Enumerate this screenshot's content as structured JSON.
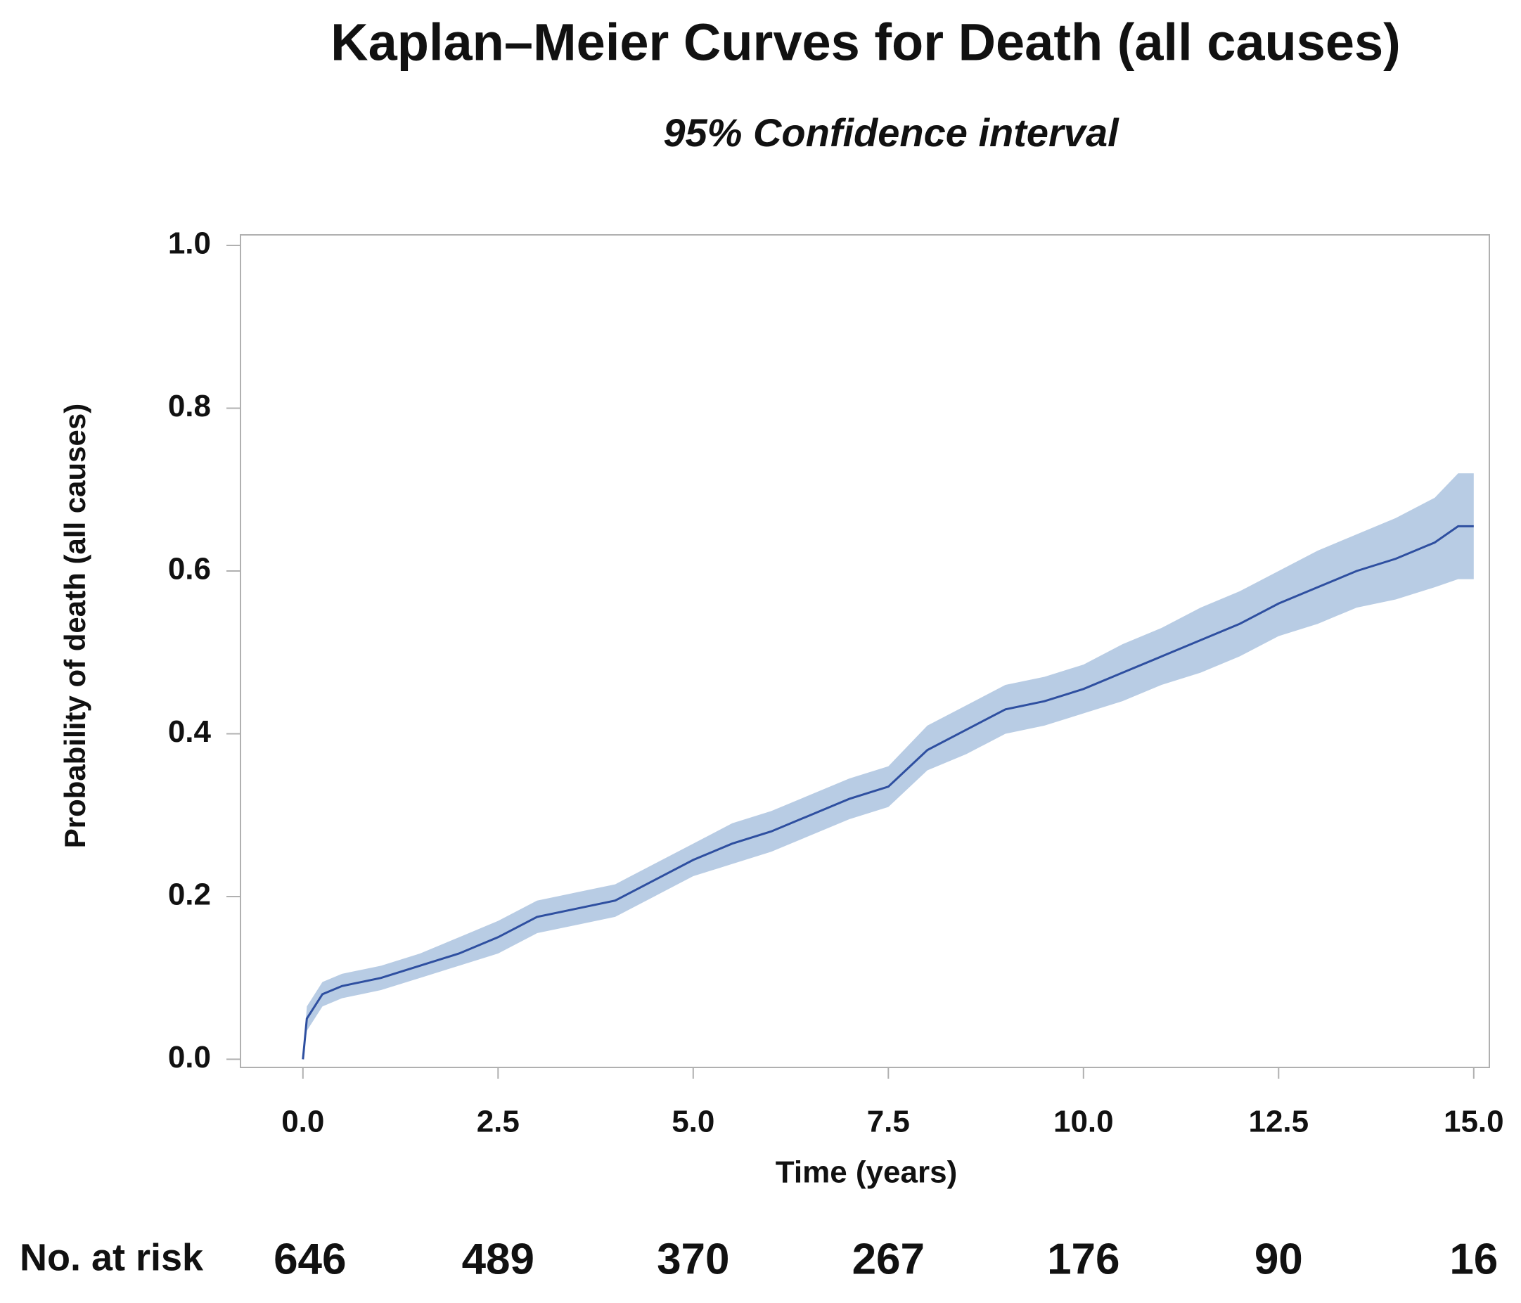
{
  "chart_data": {
    "type": "km",
    "title": "Kaplan–Meier Curves for Death (all causes)",
    "subtitle": "95% Confidence interval",
    "x_label": "Time (years)",
    "y_label": "Probability of death (all causes)",
    "x": [
      0,
      0.05,
      0.25,
      0.5,
      1,
      1.5,
      2,
      2.5,
      3,
      3.5,
      4,
      4.5,
      5,
      5.5,
      6,
      6.5,
      7,
      7.5,
      8,
      8.5,
      9,
      9.5,
      10,
      10.5,
      11,
      11.5,
      12,
      12.5,
      13,
      13.5,
      14,
      14.5,
      14.8,
      15
    ],
    "values": [
      0,
      0.05,
      0.08,
      0.09,
      0.1,
      0.115,
      0.13,
      0.15,
      0.175,
      0.185,
      0.195,
      0.22,
      0.245,
      0.265,
      0.28,
      0.3,
      0.32,
      0.335,
      0.38,
      0.405,
      0.43,
      0.44,
      0.455,
      0.475,
      0.495,
      0.515,
      0.535,
      0.56,
      0.58,
      0.6,
      0.615,
      0.635,
      0.655,
      0.655
    ],
    "ci_lower": [
      0,
      0.035,
      0.065,
      0.075,
      0.085,
      0.1,
      0.115,
      0.13,
      0.155,
      0.165,
      0.175,
      0.2,
      0.225,
      0.24,
      0.255,
      0.275,
      0.295,
      0.31,
      0.355,
      0.375,
      0.4,
      0.41,
      0.425,
      0.44,
      0.46,
      0.475,
      0.495,
      0.52,
      0.535,
      0.555,
      0.565,
      0.58,
      0.59,
      0.59
    ],
    "ci_upper": [
      0,
      0.065,
      0.095,
      0.105,
      0.115,
      0.13,
      0.15,
      0.17,
      0.195,
      0.205,
      0.215,
      0.24,
      0.265,
      0.29,
      0.305,
      0.325,
      0.345,
      0.36,
      0.41,
      0.435,
      0.46,
      0.47,
      0.485,
      0.51,
      0.53,
      0.555,
      0.575,
      0.6,
      0.625,
      0.645,
      0.665,
      0.69,
      0.72,
      0.72
    ],
    "line_color": "#2e4fa0",
    "band_color": "#b8cce4",
    "xlim": [
      -0.8,
      15.2
    ],
    "ylim": [
      -0.01,
      1.013
    ],
    "xticks": [
      {
        "value": 0,
        "label": "0.0"
      },
      {
        "value": 2.5,
        "label": "2.5"
      },
      {
        "value": 5,
        "label": "5.0"
      },
      {
        "value": 7.5,
        "label": "7.5"
      },
      {
        "value": 10,
        "label": "10.0"
      },
      {
        "value": 12.5,
        "label": "12.5"
      },
      {
        "value": 15,
        "label": "15.0"
      }
    ],
    "yticks": [
      {
        "value": 0,
        "label": "0.0"
      },
      {
        "value": 0.2,
        "label": "0.2"
      },
      {
        "value": 0.4,
        "label": "0.4"
      },
      {
        "value": 0.6,
        "label": "0.6"
      },
      {
        "value": 0.8,
        "label": "0.8"
      },
      {
        "value": 1,
        "label": "1.0"
      }
    ],
    "risk_table": {
      "label": "No. at risk",
      "values": [
        646,
        489,
        370,
        267,
        176,
        90,
        16
      ]
    }
  }
}
